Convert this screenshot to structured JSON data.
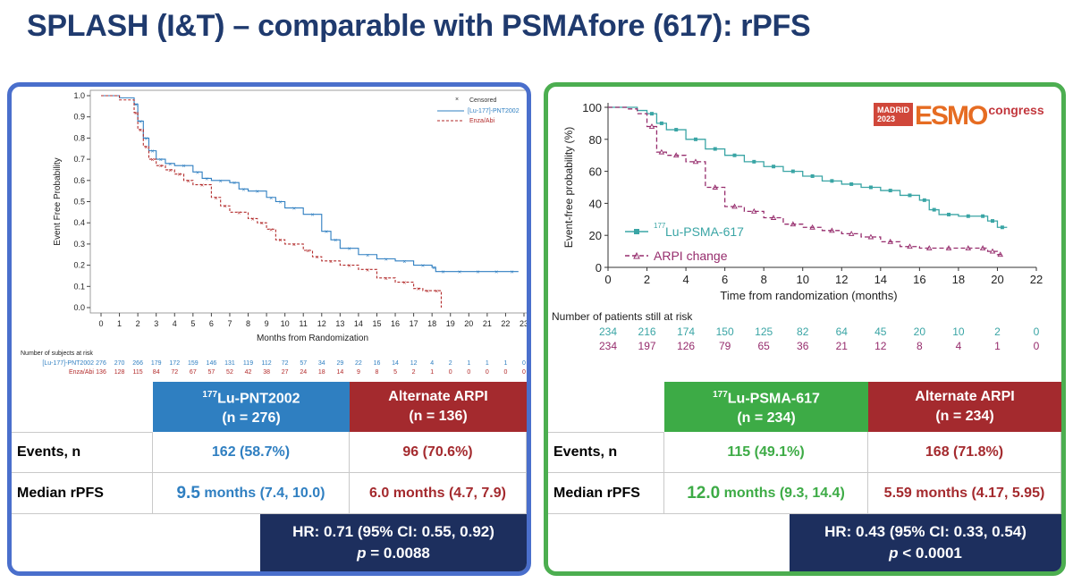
{
  "title": "SPLASH (I&T) – comparable with PSMAfore (617): rPFS",
  "colors": {
    "left_border": "#4a6fcc",
    "right_border": "#4cae50",
    "title": "#1f3a6e",
    "blue": "#2f7fc1",
    "red": "#b22a2a",
    "green": "#3dab46",
    "teal": "#3aa5a5",
    "purple": "#962d6d",
    "navy": "#1d2f5e"
  },
  "left": {
    "logo_icon": "censored-legend",
    "legend": {
      "censored": "Censored",
      "series1": "[Lu-177]-PNT2002",
      "series2": "Enza/Abi"
    },
    "ylabel": "Event Free Probability",
    "xlabel": "Months from Randomization",
    "at_risk_title": "Number of subjects at risk",
    "at_risk": [
      {
        "label": "[Lu-177]-PNT2002",
        "values": [
          "276",
          "270",
          "266",
          "179",
          "172",
          "159",
          "146",
          "131",
          "119",
          "112",
          "72",
          "57",
          "34",
          "29",
          "22",
          "16",
          "14",
          "12",
          "4",
          "2",
          "1",
          "1",
          "1",
          "0"
        ]
      },
      {
        "label": "Enza/Abi",
        "values": [
          "136",
          "128",
          "115",
          "84",
          "72",
          "67",
          "57",
          "52",
          "42",
          "38",
          "27",
          "24",
          "18",
          "14",
          "9",
          "8",
          "5",
          "2",
          "1",
          "0",
          "0",
          "0",
          "0",
          "0"
        ]
      }
    ],
    "table": {
      "h1": "177",
      "h1b": "Lu-PNT2002",
      "h1c": "(n = 276)",
      "h2": "Alternate ARPI",
      "h2c": "(n = 136)",
      "row1_label": "Events, n",
      "row1_a": "162 (58.7%)",
      "row1_b": "96 (70.6%)",
      "row2_label": "Median rPFS",
      "row2_a_big": "9.5",
      "row2_a": " months (7.4, 10.0)",
      "row2_b": "6.0 months (4.7, 7.9)",
      "hr1": "HR: 0.71 (95% CI: 0.55, 0.92)",
      "hr_p": "p",
      "hr2": " = 0.0088"
    }
  },
  "right": {
    "ylabel": "Event-free probability (%)",
    "xlabel": "Time from randomization (months)",
    "legend": {
      "s1_sup": "177",
      "s1": "Lu-PSMA-617",
      "s2": "ARPI change"
    },
    "logo": {
      "line1": "MADRID",
      "line2": "2023",
      "word": "ESMO",
      "congress": "congress"
    },
    "at_risk_title": "Number of patients still at risk",
    "at_risk": [
      [
        "234",
        "216",
        "174",
        "150",
        "125",
        "82",
        "64",
        "45",
        "20",
        "10",
        "2",
        "0"
      ],
      [
        "234",
        "197",
        "126",
        "79",
        "65",
        "36",
        "21",
        "12",
        "8",
        "4",
        "1",
        "0"
      ]
    ],
    "table": {
      "h1": "177",
      "h1b": "Lu-PSMA-617",
      "h1c": "(n = 234)",
      "h2": "Alternate ARPI",
      "h2c": "(n = 234)",
      "row1_label": "Events, n",
      "row1_a": "115 (49.1%)",
      "row1_b": "168 (71.8%)",
      "row2_label": "Median rPFS",
      "row2_a_big": "12.0",
      "row2_a": " months (9.3, 14.4)",
      "row2_b": "5.59 months (4.17, 5.95)",
      "hr1": "HR: 0.43 (95% CI: 0.33, 0.54)",
      "hr_p": "p",
      "hr2": " < 0.0001"
    }
  },
  "chart_data": [
    {
      "type": "line",
      "title": "",
      "xlabel": "Months from Randomization",
      "ylabel": "Event Free Probability",
      "xlim": [
        0,
        23
      ],
      "ylim": [
        0,
        1.0
      ],
      "xticks": [
        0,
        1,
        2,
        3,
        4,
        5,
        6,
        7,
        8,
        9,
        10,
        11,
        12,
        13,
        14,
        15,
        16,
        17,
        18,
        19,
        20,
        21,
        22,
        23
      ],
      "yticks": [
        0.0,
        0.1,
        0.2,
        0.3,
        0.4,
        0.5,
        0.6,
        0.7,
        0.8,
        0.9,
        1.0
      ],
      "legend_position": "top-right",
      "series": [
        {
          "name": "[Lu-177]-PNT2002",
          "style": "solid",
          "color": "#2f7fc1",
          "x": [
            0,
            1,
            1.8,
            2,
            2.3,
            2.6,
            3,
            3.5,
            4,
            5,
            5.5,
            6,
            7,
            7.5,
            8,
            9,
            9.5,
            10,
            11,
            12,
            12.5,
            13,
            14,
            15,
            16,
            17,
            18,
            18.2,
            19,
            20,
            21,
            22,
            22.7
          ],
          "y": [
            1.0,
            0.99,
            0.96,
            0.88,
            0.8,
            0.74,
            0.7,
            0.68,
            0.67,
            0.64,
            0.61,
            0.6,
            0.59,
            0.56,
            0.55,
            0.52,
            0.5,
            0.47,
            0.44,
            0.36,
            0.32,
            0.28,
            0.25,
            0.23,
            0.22,
            0.2,
            0.19,
            0.17,
            0.17,
            0.17,
            0.17,
            0.17,
            0.17
          ]
        },
        {
          "name": "Enza/Abi",
          "style": "dashed",
          "color": "#b22a2a",
          "x": [
            0,
            1,
            1.8,
            2,
            2.3,
            2.6,
            3,
            3.5,
            4,
            4.5,
            5,
            6,
            6.5,
            7,
            8,
            8.5,
            9,
            9.5,
            10,
            11,
            11.5,
            12,
            13,
            14,
            15,
            16,
            17,
            17.5,
            18,
            18.5
          ],
          "y": [
            1.0,
            0.98,
            0.92,
            0.84,
            0.76,
            0.7,
            0.67,
            0.65,
            0.63,
            0.6,
            0.58,
            0.52,
            0.48,
            0.45,
            0.42,
            0.4,
            0.37,
            0.32,
            0.3,
            0.27,
            0.24,
            0.22,
            0.2,
            0.18,
            0.14,
            0.12,
            0.09,
            0.08,
            0.08,
            0.0
          ]
        }
      ]
    },
    {
      "type": "line",
      "title": "",
      "xlabel": "Time from randomization (months)",
      "ylabel": "Event-free probability (%)",
      "xlim": [
        0,
        22
      ],
      "ylim": [
        0,
        100
      ],
      "xticks": [
        0,
        2,
        4,
        6,
        8,
        10,
        12,
        14,
        16,
        18,
        20,
        22
      ],
      "yticks": [
        0,
        20,
        40,
        60,
        80,
        100
      ],
      "legend_position": "bottom-left",
      "series": [
        {
          "name": "177Lu-PSMA-617",
          "style": "solid",
          "color": "#3aa5a5",
          "x": [
            0,
            1,
            1.5,
            2,
            2.5,
            3,
            4,
            5,
            6,
            7,
            8,
            9,
            10,
            11,
            12,
            13,
            14,
            15,
            16,
            16.5,
            17,
            18,
            19,
            19.5,
            20,
            20.5
          ],
          "y": [
            100,
            100,
            98,
            96,
            90,
            86,
            80,
            74,
            70,
            66,
            63,
            60,
            57,
            54,
            52,
            50,
            48,
            45,
            42,
            36,
            33,
            32,
            32,
            29,
            25,
            25
          ]
        },
        {
          "name": "ARPI change",
          "style": "dashed",
          "color": "#962d6d",
          "x": [
            0,
            1,
            1.5,
            2,
            2.5,
            3,
            4,
            5,
            6,
            7,
            8,
            9,
            10,
            11,
            12,
            13,
            14,
            15,
            16,
            17,
            18,
            19,
            19.5,
            20,
            20.3
          ],
          "y": [
            100,
            99,
            96,
            88,
            72,
            70,
            66,
            50,
            38,
            35,
            31,
            27,
            25,
            23,
            21,
            19,
            16,
            13,
            12,
            12,
            12,
            12,
            10,
            8,
            8
          ]
        }
      ]
    }
  ]
}
